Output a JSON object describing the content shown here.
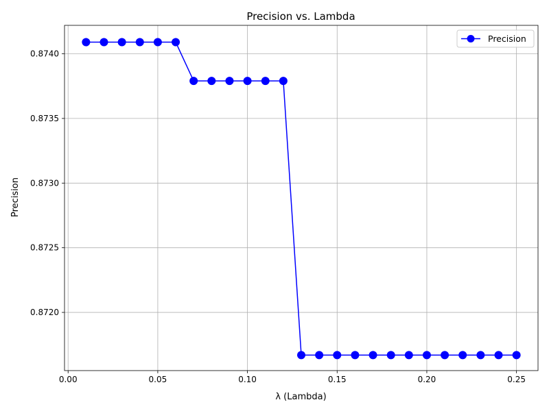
{
  "chart_data": {
    "type": "line",
    "title": "Precision vs. Lambda",
    "xlabel": "λ (Lambda)",
    "ylabel": "Precision",
    "xlim": [
      -0.002,
      0.262
    ],
    "ylim": [
      0.87155,
      0.87422
    ],
    "x_ticks": [
      0.0,
      0.05,
      0.1,
      0.15,
      0.2,
      0.25
    ],
    "x_tick_labels": [
      "0.00",
      "0.05",
      "0.10",
      "0.15",
      "0.20",
      "0.25"
    ],
    "y_ticks": [
      0.872,
      0.8725,
      0.873,
      0.8735,
      0.874
    ],
    "y_tick_labels": [
      "0.8720",
      "0.8725",
      "0.8730",
      "0.8735",
      "0.8740"
    ],
    "grid": true,
    "legend_position": "top-right",
    "series": [
      {
        "name": "Precision",
        "color": "#0000ff",
        "marker": "circle",
        "x": [
          0.01,
          0.02,
          0.03,
          0.04,
          0.05,
          0.06,
          0.07,
          0.08,
          0.09,
          0.1,
          0.11,
          0.12,
          0.13,
          0.14,
          0.15,
          0.16,
          0.17,
          0.18,
          0.19,
          0.2,
          0.21,
          0.22,
          0.23,
          0.24,
          0.25
        ],
        "y": [
          0.87409,
          0.87409,
          0.87409,
          0.87409,
          0.87409,
          0.87409,
          0.87379,
          0.87379,
          0.87379,
          0.87379,
          0.87379,
          0.87379,
          0.87167,
          0.87167,
          0.87167,
          0.87167,
          0.87167,
          0.87167,
          0.87167,
          0.87167,
          0.87167,
          0.87167,
          0.87167,
          0.87167,
          0.87167
        ]
      }
    ]
  }
}
